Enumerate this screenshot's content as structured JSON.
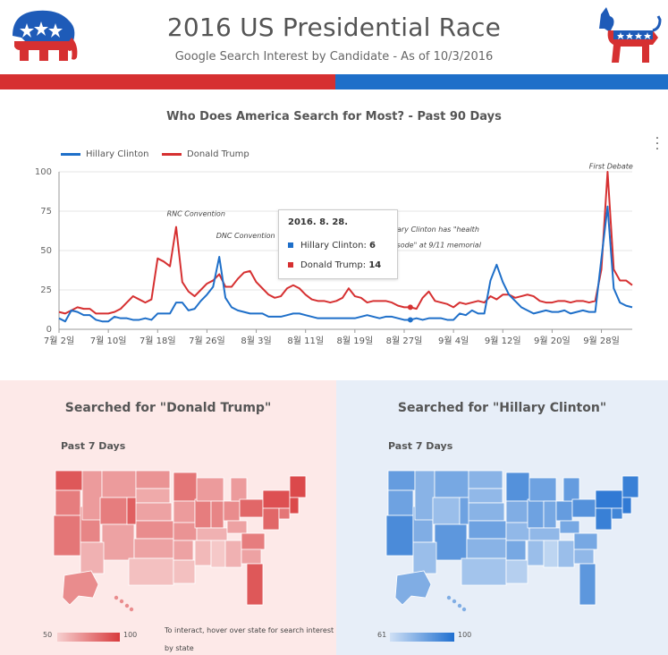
{
  "header": {
    "title": "2016 US Presidential Race",
    "subtitle": "Google Search Interest by Candidate - As of 10/3/2016"
  },
  "colors": {
    "republican": "#d63031",
    "democrat": "#1e6fc9"
  },
  "line_panel": {
    "title": "Who Does America Search for Most? - Past 90 Days",
    "legend": [
      {
        "name": "Hillary Clinton",
        "color": "#1e6fc9"
      },
      {
        "name": "Donald Trump",
        "color": "#d63031"
      }
    ],
    "annotations": [
      {
        "text": "RNC Convention",
        "x": 17.5,
        "y": 72
      },
      {
        "text": "DNC Convention",
        "x": 25.5,
        "y": 58
      },
      {
        "text": "Hillary Clinton has \"health",
        "x": 53,
        "y": 62
      },
      {
        "text": "episode\" at 9/11 memorial",
        "x": 53,
        "y": 52
      },
      {
        "text": "First Debate",
        "x": 86,
        "y": 102
      }
    ],
    "tooltip": {
      "title": "2016. 8. 28.",
      "rows": [
        {
          "label": "Hillary Clinton: ",
          "value": "6",
          "color": "#1e6fc9"
        },
        {
          "label": "Donald Trump: ",
          "value": "14",
          "color": "#d63031"
        }
      ]
    },
    "menu_icon": "more-vert-icon"
  },
  "chart_data": {
    "type": "line",
    "x_ticks": [
      "7월 2일",
      "7월 10일",
      "7월 18일",
      "7월 26일",
      "8월 3일",
      "8월 11일",
      "8월 19일",
      "8월 27일",
      "9월 4일",
      "9월 12일",
      "9월 20일",
      "9월 28일"
    ],
    "x_tick_positions": [
      0,
      8,
      16,
      24,
      32,
      40,
      48,
      56,
      64,
      72,
      80,
      88
    ],
    "ylim": [
      0,
      100
    ],
    "y_ticks": [
      0,
      25,
      50,
      75,
      100
    ],
    "xlim": [
      0,
      93
    ],
    "grid": "horizontal",
    "legend_position": "top-left",
    "series": [
      {
        "name": "Hillary Clinton",
        "color": "#1e6fc9",
        "values": [
          7,
          5,
          12,
          11,
          9,
          9,
          6,
          5,
          5,
          8,
          7,
          7,
          6,
          6,
          7,
          6,
          10,
          10,
          10,
          17,
          17,
          12,
          13,
          18,
          22,
          27,
          46,
          20,
          14,
          12,
          11,
          10,
          10,
          10,
          8,
          8,
          8,
          9,
          10,
          10,
          9,
          8,
          7,
          7,
          7,
          7,
          7,
          7,
          7,
          8,
          9,
          8,
          7,
          8,
          8,
          7,
          6,
          6,
          7,
          6,
          7,
          7,
          7,
          6,
          6,
          10,
          9,
          12,
          10,
          10,
          31,
          41,
          30,
          22,
          18,
          14,
          12,
          10,
          11,
          12,
          11,
          11,
          12,
          10,
          11,
          12,
          11,
          11,
          45,
          78,
          26,
          17,
          15,
          14
        ]
      },
      {
        "name": "Donald Trump",
        "color": "#d63031",
        "values": [
          11,
          10,
          12,
          14,
          13,
          13,
          10,
          10,
          10,
          11,
          13,
          17,
          21,
          19,
          17,
          19,
          45,
          43,
          40,
          65,
          30,
          24,
          21,
          25,
          29,
          31,
          35,
          27,
          27,
          32,
          36,
          37,
          30,
          26,
          22,
          20,
          21,
          26,
          28,
          26,
          22,
          19,
          18,
          18,
          17,
          18,
          20,
          26,
          21,
          20,
          17,
          18,
          18,
          18,
          17,
          15,
          14,
          14,
          13,
          20,
          24,
          18,
          17,
          16,
          14,
          17,
          16,
          17,
          18,
          17,
          21,
          19,
          22,
          22,
          20,
          21,
          22,
          21,
          18,
          17,
          17,
          18,
          18,
          17,
          18,
          18,
          17,
          18,
          38,
          100,
          38,
          31,
          31,
          28
        ]
      }
    ]
  },
  "map_left": {
    "title": "Searched for \"Donald Trump\"",
    "subtitle": "Past 7 Days",
    "scale_min": "50",
    "scale_max": "100",
    "hint": "To interact, hover over state for search interest by state",
    "color_low": "#f6cfcf",
    "color_high": "#d83a3c"
  },
  "map_right": {
    "title": "Searched for \"Hillary Clinton\"",
    "subtitle": "Past 7 Days",
    "scale_min": "61",
    "scale_max": "100",
    "color_low": "#cfe0f5",
    "color_high": "#1f6fd0"
  }
}
